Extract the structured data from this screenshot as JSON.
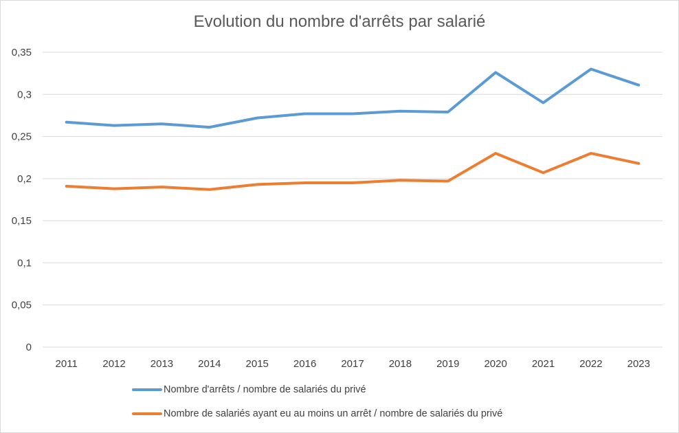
{
  "chart_data": {
    "type": "line",
    "title": "Evolution du nombre d'arrêts par salarié",
    "xlabel": "",
    "ylabel": "",
    "categories": [
      "2011",
      "2012",
      "2013",
      "2014",
      "2015",
      "2016",
      "2017",
      "2018",
      "2019",
      "2020",
      "2021",
      "2022",
      "2023"
    ],
    "ylim": [
      0,
      0.35
    ],
    "yticks": [
      "0",
      "0,05",
      "0,1",
      "0,15",
      "0,2",
      "0,25",
      "0,3",
      "0,35"
    ],
    "ytick_values": [
      0,
      0.05,
      0.1,
      0.15,
      0.2,
      0.25,
      0.3,
      0.35
    ],
    "grid": true,
    "legend_position": "bottom",
    "series": [
      {
        "name": "Nombre d'arrêts / nombre de salariés du privé",
        "color": "#5b9bd5",
        "values": [
          0.267,
          0.263,
          0.265,
          0.261,
          0.272,
          0.277,
          0.277,
          0.28,
          0.279,
          0.326,
          0.29,
          0.33,
          0.311
        ]
      },
      {
        "name": "Nombre de salariés ayant eu au moins un arrêt / nombre de salariés du privé",
        "color": "#ed7d31",
        "values": [
          0.191,
          0.188,
          0.19,
          0.187,
          0.193,
          0.195,
          0.195,
          0.198,
          0.197,
          0.23,
          0.207,
          0.23,
          0.218
        ]
      }
    ]
  }
}
